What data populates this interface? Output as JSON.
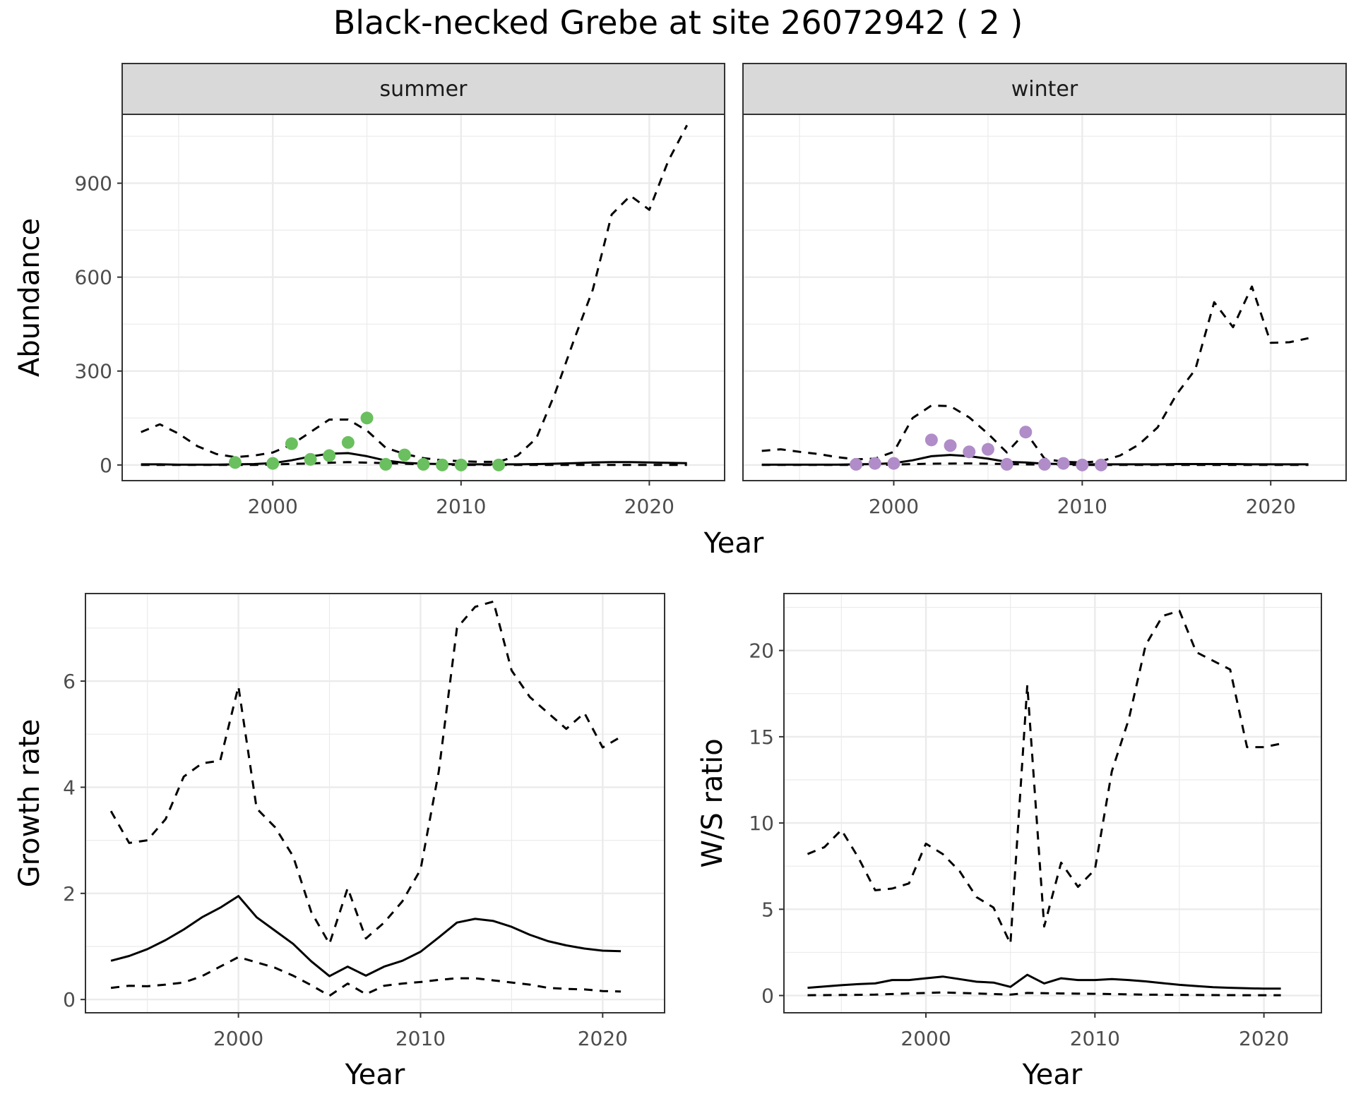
{
  "title": "Black-necked Grebe at site 26072942 ( 2 )",
  "colors": {
    "summer_points": "#6abf5e",
    "winter_points": "#b08cc8",
    "lines": "#000000",
    "strip_bg": "#d9d9d9",
    "grid": "#ebebeb",
    "panel_border": "#333333"
  },
  "abundance_xlabel": "Year",
  "chart_data": [
    {
      "id": "summer",
      "type": "line",
      "facet_label": "summer",
      "xlabel": "Year",
      "ylabel": "Abundance",
      "xlim": [
        1992,
        2024
      ],
      "ylim": [
        -50,
        1120
      ],
      "xticks": [
        2000,
        2010,
        2020
      ],
      "yticks": [
        0,
        300,
        600,
        900
      ],
      "grid": true,
      "lines": [
        {
          "style": "solid",
          "x": [
            1993,
            1994,
            1995,
            1996,
            1997,
            1998,
            1999,
            2000,
            2001,
            2002,
            2003,
            2004,
            2005,
            2006,
            2007,
            2008,
            2009,
            2010,
            2011,
            2012,
            2013,
            2014,
            2015,
            2016,
            2017,
            2018,
            2019,
            2020,
            2021,
            2022
          ],
          "y": [
            2,
            2,
            1,
            1,
            1,
            2,
            3,
            6,
            15,
            27,
            36,
            38,
            28,
            14,
            7,
            4,
            3,
            2,
            2,
            2,
            2,
            3,
            4,
            6,
            8,
            9,
            9,
            8,
            7,
            6
          ]
        },
        {
          "style": "dashed",
          "x": [
            1993,
            1994,
            1995,
            1996,
            1997,
            1998,
            1999,
            2000,
            2001,
            2002,
            2003,
            2004,
            2005,
            2006,
            2007,
            2008,
            2009,
            2010,
            2011,
            2012,
            2013,
            2014,
            2015,
            2016,
            2017,
            2018,
            2019,
            2020,
            2021,
            2022
          ],
          "y": [
            105,
            130,
            100,
            60,
            35,
            25,
            30,
            40,
            65,
            105,
            145,
            145,
            110,
            55,
            35,
            22,
            15,
            12,
            10,
            10,
            30,
            85,
            230,
            400,
            560,
            800,
            860,
            815,
            970,
            1085
          ]
        },
        {
          "style": "dashed",
          "x": [
            1993,
            1996,
            1999,
            2002,
            2004,
            2006,
            2008,
            2010,
            2013,
            2016,
            2019,
            2022
          ],
          "y": [
            0,
            0,
            0,
            5,
            9,
            6,
            2,
            0,
            0,
            0,
            0,
            0
          ]
        }
      ],
      "points": {
        "x": [
          1998,
          2000,
          2001,
          2002,
          2003,
          2004,
          2005,
          2006,
          2007,
          2008,
          2009,
          2010,
          2012
        ],
        "y": [
          8,
          5,
          68,
          18,
          30,
          72,
          150,
          2,
          32,
          2,
          0,
          0,
          0
        ]
      }
    },
    {
      "id": "winter",
      "type": "line",
      "facet_label": "winter",
      "xlabel": "Year",
      "xlim": [
        1992,
        2024
      ],
      "ylim": [
        -50,
        1120
      ],
      "xticks": [
        2000,
        2010,
        2020
      ],
      "yticks": [
        0,
        300,
        600,
        900
      ],
      "grid": true,
      "lines": [
        {
          "style": "solid",
          "x": [
            1993,
            1994,
            1995,
            1996,
            1997,
            1998,
            1999,
            2000,
            2001,
            2002,
            2003,
            2004,
            2005,
            2006,
            2007,
            2008,
            2009,
            2010,
            2011,
            2012,
            2013,
            2014,
            2015,
            2016,
            2017,
            2018,
            2019,
            2020,
            2021,
            2022
          ],
          "y": [
            1,
            1,
            1,
            1,
            1,
            2,
            3,
            6,
            15,
            28,
            32,
            28,
            20,
            10,
            8,
            4,
            3,
            2,
            2,
            2,
            2,
            2,
            3,
            3,
            3,
            3,
            2,
            2,
            2,
            2
          ]
        },
        {
          "style": "dashed",
          "x": [
            1993,
            1994,
            1995,
            1996,
            1997,
            1998,
            1999,
            2000,
            2001,
            2002,
            2003,
            2004,
            2005,
            2006,
            2007,
            2008,
            2009,
            2010,
            2011,
            2012,
            2013,
            2014,
            2015,
            2016,
            2017,
            2018,
            2019,
            2020,
            2021,
            2022
          ],
          "y": [
            45,
            50,
            42,
            35,
            25,
            18,
            20,
            42,
            150,
            190,
            188,
            152,
            100,
            40,
            105,
            20,
            10,
            8,
            12,
            30,
            65,
            120,
            225,
            305,
            520,
            440,
            570,
            390,
            392,
            405
          ]
        },
        {
          "style": "dashed",
          "x": [
            1993,
            1996,
            1999,
            2002,
            2004,
            2006,
            2008,
            2010,
            2013,
            2016,
            2019,
            2022
          ],
          "y": [
            0,
            0,
            0,
            4,
            5,
            3,
            1,
            0,
            0,
            0,
            0,
            0
          ]
        }
      ],
      "points": {
        "x": [
          1998,
          1999,
          2000,
          2002,
          2003,
          2004,
          2005,
          2006,
          2007,
          2008,
          2009,
          2010,
          2011
        ],
        "y": [
          2,
          5,
          5,
          80,
          62,
          42,
          50,
          2,
          105,
          2,
          5,
          0,
          0
        ]
      }
    },
    {
      "id": "growth",
      "type": "line",
      "xlabel": "Year",
      "ylabel": "Growth rate",
      "xlim": [
        1991.6,
        2023.4
      ],
      "ylim": [
        -0.25,
        7.65
      ],
      "xticks": [
        2000,
        2010,
        2020
      ],
      "yticks": [
        0,
        2,
        4,
        6
      ],
      "grid": true,
      "lines": [
        {
          "style": "solid",
          "x": [
            1993,
            1994,
            1995,
            1996,
            1997,
            1998,
            1999,
            2000,
            2001,
            2002,
            2003,
            2004,
            2005,
            2006,
            2007,
            2008,
            2009,
            2010,
            2011,
            2012,
            2013,
            2014,
            2015,
            2016,
            2017,
            2018,
            2019,
            2020,
            2021
          ],
          "y": [
            0.73,
            0.82,
            0.95,
            1.12,
            1.32,
            1.55,
            1.73,
            1.95,
            1.55,
            1.3,
            1.05,
            0.72,
            0.44,
            0.62,
            0.45,
            0.62,
            0.73,
            0.9,
            1.17,
            1.45,
            1.52,
            1.48,
            1.37,
            1.22,
            1.1,
            1.02,
            0.96,
            0.92,
            0.91
          ]
        },
        {
          "style": "dashed",
          "x": [
            1993,
            1994,
            1995,
            1996,
            1997,
            1998,
            1999,
            2000,
            2001,
            2002,
            2003,
            2004,
            2005,
            2006,
            2007,
            2008,
            2009,
            2010,
            2011,
            2012,
            2013,
            2014,
            2015,
            2016,
            2017,
            2018,
            2019,
            2020,
            2021
          ],
          "y": [
            3.55,
            2.95,
            3.0,
            3.4,
            4.2,
            4.45,
            4.5,
            5.9,
            3.6,
            3.25,
            2.7,
            1.65,
            1.05,
            2.1,
            1.15,
            1.45,
            1.85,
            2.45,
            4.3,
            7.0,
            7.4,
            7.5,
            6.2,
            5.7,
            5.4,
            5.1,
            5.4,
            4.75,
            4.95
          ]
        },
        {
          "style": "dashed",
          "x": [
            1993,
            1994,
            1995,
            1996,
            1997,
            1998,
            1999,
            2000,
            2001,
            2002,
            2003,
            2004,
            2005,
            2006,
            2007,
            2008,
            2009,
            2010,
            2011,
            2012,
            2013,
            2014,
            2015,
            2016,
            2017,
            2018,
            2019,
            2020,
            2021
          ],
          "y": [
            0.22,
            0.26,
            0.25,
            0.28,
            0.32,
            0.44,
            0.62,
            0.8,
            0.7,
            0.6,
            0.45,
            0.27,
            0.07,
            0.3,
            0.1,
            0.26,
            0.3,
            0.33,
            0.37,
            0.4,
            0.4,
            0.36,
            0.32,
            0.28,
            0.22,
            0.2,
            0.19,
            0.16,
            0.15
          ]
        }
      ]
    },
    {
      "id": "ratio",
      "type": "line",
      "xlabel": "Year",
      "ylabel": "W/S ratio",
      "xlim": [
        1991.6,
        2023.4
      ],
      "ylim": [
        -1.0,
        23.3
      ],
      "xticks": [
        2000,
        2010,
        2020
      ],
      "yticks": [
        0,
        5,
        10,
        15,
        20
      ],
      "grid": true,
      "lines": [
        {
          "style": "solid",
          "x": [
            1993,
            1994,
            1995,
            1996,
            1997,
            1998,
            1999,
            2000,
            2001,
            2002,
            2003,
            2004,
            2005,
            2006,
            2007,
            2008,
            2009,
            2010,
            2011,
            2012,
            2013,
            2014,
            2015,
            2016,
            2017,
            2018,
            2019,
            2020,
            2021
          ],
          "y": [
            0.45,
            0.52,
            0.6,
            0.66,
            0.7,
            0.9,
            0.9,
            1.0,
            1.1,
            0.95,
            0.8,
            0.75,
            0.5,
            1.2,
            0.7,
            1.0,
            0.9,
            0.9,
            0.95,
            0.9,
            0.82,
            0.72,
            0.62,
            0.55,
            0.48,
            0.45,
            0.42,
            0.4,
            0.4
          ]
        },
        {
          "style": "dashed",
          "x": [
            1993,
            1994,
            1995,
            1996,
            1997,
            1998,
            1999,
            2000,
            2001,
            2002,
            2003,
            2004,
            2005,
            2006,
            2007,
            2008,
            2009,
            2010,
            2011,
            2012,
            2013,
            2014,
            2015,
            2016,
            2017,
            2018,
            2019,
            2020,
            2021
          ],
          "y": [
            8.2,
            8.6,
            9.6,
            8.0,
            6.1,
            6.2,
            6.5,
            8.8,
            8.2,
            7.2,
            5.7,
            5.1,
            3.0,
            18.0,
            4.0,
            7.7,
            6.3,
            7.3,
            13.0,
            16.0,
            20.3,
            22.0,
            22.3,
            19.9,
            19.4,
            18.9,
            14.4,
            14.4,
            14.6
          ]
        },
        {
          "style": "dashed",
          "x": [
            1993,
            1995,
            1997,
            1999,
            2001,
            2003,
            2005,
            2006,
            2008,
            2010,
            2013,
            2016,
            2019,
            2021
          ],
          "y": [
            0.02,
            0.03,
            0.05,
            0.12,
            0.18,
            0.12,
            0.05,
            0.15,
            0.12,
            0.1,
            0.05,
            0.03,
            0.02,
            0.02
          ]
        }
      ]
    }
  ]
}
